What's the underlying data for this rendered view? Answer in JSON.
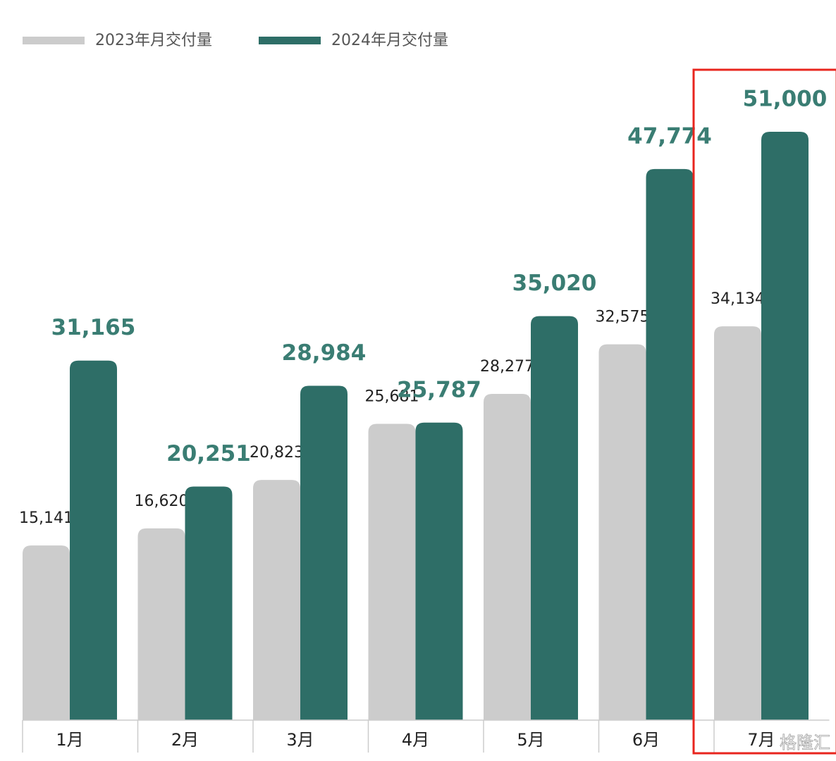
{
  "chart_data": {
    "type": "bar",
    "categories": [
      "1月",
      "2月",
      "3月",
      "4月",
      "5月",
      "6月",
      "7月"
    ],
    "series": [
      {
        "name": "2023年月交付量",
        "color": "#cccccc",
        "values": [
          15141,
          16620,
          20823,
          25681,
          28277,
          32575,
          34134
        ],
        "value_labels": [
          "15,141",
          "16,620",
          "20,823",
          "25,681",
          "28,277",
          "32,575",
          "34,134"
        ]
      },
      {
        "name": "2024年月交付量",
        "color": "#2e6e67",
        "values": [
          31165,
          20251,
          28984,
          25787,
          35020,
          47774,
          51000
        ],
        "value_labels": [
          "31,165",
          "20,251",
          "28,984",
          "25,787",
          "35,020",
          "47,774",
          "51,000"
        ]
      }
    ],
    "watermark": "格隆汇"
  }
}
